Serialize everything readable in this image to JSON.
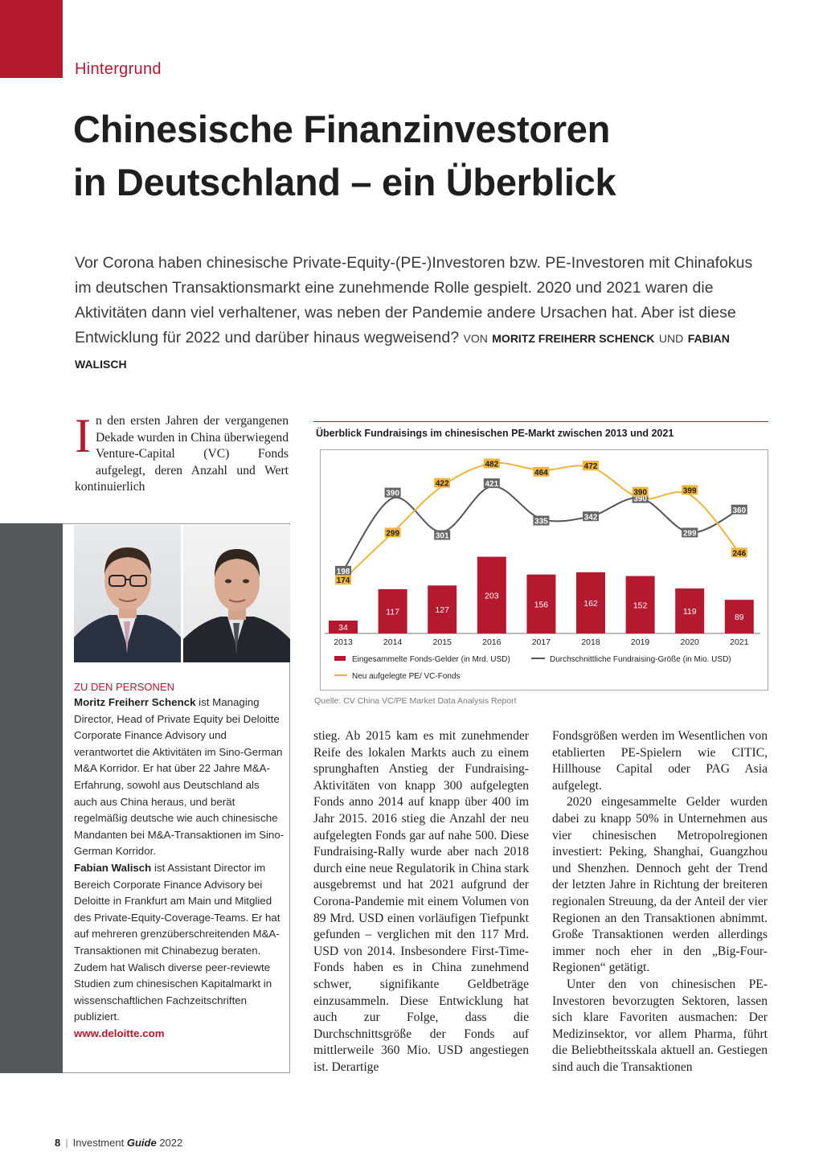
{
  "section_kicker": "Hintergrund",
  "headline": {
    "line1": "Chinesische Finanzinvestoren",
    "line2": "in Deutschland – ein Überblick"
  },
  "lead": {
    "text": "Vor Corona haben chinesische Private-Equity-(PE-)Investoren bzw. PE-Investoren mit China­fokus im deutschen Transaktionsmarkt eine zunehmende Rolle gespielt. 2020 und 2021 waren die Aktivitäten dann viel verhaltener, was neben der Pandemie andere Ursachen hat. Aber ist diese Entwicklung für 2022 und darüber hinaus wegweisend?",
    "von": "VON",
    "author1": "MORITZ FREIHERR SCHENCK",
    "und": "UND",
    "author2": "FABIAN WALISCH"
  },
  "intro": {
    "dropcap": "I",
    "text": "n den ersten Jahren der vergangenen Dekade wurden in China überwiegend Venture-Capital (VC) Fonds aufgelegt, deren Anzahl und Wert kontinuierlich"
  },
  "persons": {
    "heading": "ZU DEN PERSONEN",
    "name1": "Moritz Freiherr Schenck",
    "bio1": " ist Managing Director, Head of Private Equity bei Deloitte Corporate Finance Advisory und verantwortet die Aktivitäten im Sino-German M&A Korridor. Er hat über 22 Jahre M&A-Erfahrung, sowohl aus Deutschland als auch aus China heraus, und berät regelmäßig deutsche wie auch chinesische Mandanten bei M&A-Transaktionen im Sino-German Korridor.",
    "name2": "Fabian Walisch",
    "bio2": " ist Assistant Director im Bereich Corporate Finance Advisory bei Deloitte in Frankfurt am Main und Mitglied des Private-Equity-Coverage-Teams. Er hat auf mehreren grenz­überschreitenden M&A-Transaktionen mit Chinabezug beraten. Zudem hat Walisch diverse peer-reviewte Studien zum chinesischen Kapitalmarkt in wissenschaftlichen Fachzeitschriften publiziert.",
    "website": "www.deloitte.com"
  },
  "chart_data": {
    "type": "bar",
    "title": "Überblick Fundraisings im chinesischen PE-Markt zwischen 2013 und 2021",
    "categories": [
      "2013",
      "2014",
      "2015",
      "2016",
      "2017",
      "2018",
      "2019",
      "2020",
      "2021"
    ],
    "series": [
      {
        "name": "Eingesammelte Fonds-Gelder (in Mrd. USD)",
        "type": "bar",
        "color": "#b4192f",
        "values": [
          34,
          117,
          127,
          203,
          156,
          162,
          152,
          119,
          89
        ]
      },
      {
        "name": "Durchschnittliche Fundraising-Größe (in Mio. USD)",
        "type": "line",
        "color": "#555555",
        "values": [
          198,
          390,
          301,
          421,
          335,
          342,
          390,
          299,
          360
        ]
      },
      {
        "name": "Neu aufgelegte PE/ VC-Fonds",
        "type": "line",
        "color": "#f0b43c",
        "values": [
          174,
          299,
          422,
          482,
          464,
          472,
          390,
          399,
          246
        ]
      }
    ],
    "legend_position": "bottom",
    "grid": false,
    "source": "Quelle: CV China VC/PE Market Data Analysis Report"
  },
  "col2_text": "stieg. Ab 2015 kam es mit zunehmender Reife des lokalen Markts auch zu einem sprunghaften Anstieg der Fundraising-Aktivitäten von knapp 300 aufgelegten Fonds anno 2014 auf knapp über 400 im Jahr 2015. 2016 stieg die Anzahl der neu aufgelegten Fonds gar auf nahe 500. Diese Fundraising-Rally wurde aber nach 2018 durch eine neue Regulatorik in China stark ausgebremst und hat 2021 aufgrund der Corona-Pandemie mit einem Volumen von 89 Mrd. USD einen vorläufigen Tiefpunkt gefunden – verglichen mit den 117 Mrd. USD von 2014. Insbesondere First-Time-Fonds haben es in China zunehmend schwer, signifikante Geldbeträge einzusammeln. Diese Entwicklung hat auch zur Folge, dass die Durchschnittsgröße der Fonds auf mittlerweile 360 Mio. USD angestiegen ist. Derartige",
  "col3": {
    "p1": "Fondsgrößen werden im Wesentlichen von etablierten PE-Spielern wie CITIC, Hillhouse Capital oder PAG Asia aufgelegt.",
    "p2": "2020 eingesammelte Gelder wurden dabei zu knapp 50% in Unternehmen aus vier chinesischen Metropolregionen investiert: Peking, Shanghai, Guangzhou und Shenzhen. Dennoch geht der Trend der letzten Jahre in Richtung der breiteren regionalen Streuung, da der Anteil der vier Regionen an den Transaktionen abnimmt. Große Transaktionen werden allerdings immer noch eher in den „Big-Four-Regionen“ getätigt.",
    "p3": "Unter den von chinesischen PE-Investoren bevorzugten Sektoren, lassen sich klare Favoriten ausmachen: Der Medizinsektor, vor allem Pharma, führt die Beliebtheitsskala aktuell an. Gestiegen sind auch die Transaktionen"
  },
  "footer": {
    "page_number": "8",
    "pub1": "Investment",
    "pub2": "Guide",
    "year": "2022"
  }
}
